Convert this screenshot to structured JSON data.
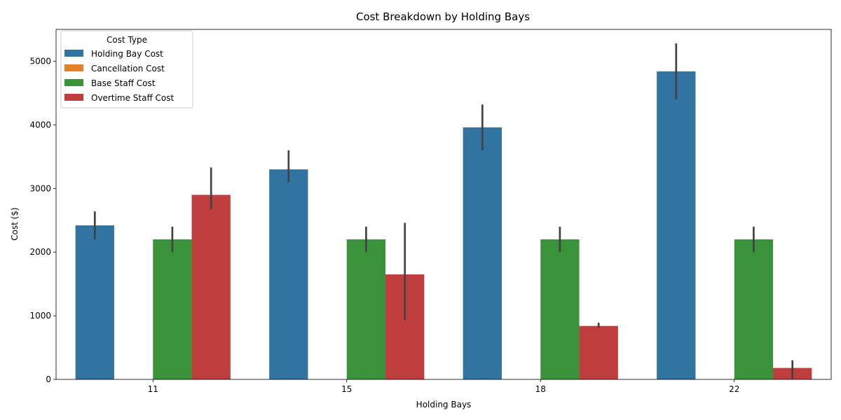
{
  "chart_data": {
    "type": "bar",
    "title": "Cost Breakdown by Holding Bays",
    "xlabel": "Holding Bays",
    "ylabel": "Cost ($)",
    "categories": [
      "11",
      "15",
      "18",
      "22"
    ],
    "ylim": [
      0,
      5500
    ],
    "yticks": [
      0,
      1000,
      2000,
      3000,
      4000,
      5000
    ],
    "legend": {
      "title": "Cost Type",
      "placement": "top-left"
    },
    "grid": false,
    "series": [
      {
        "name": "Holding Bay Cost",
        "color": "#3274a1",
        "values": [
          2420,
          3300,
          3960,
          4840
        ],
        "error_low": [
          2200,
          3100,
          3600,
          4400
        ],
        "error_high": [
          2640,
          3600,
          4320,
          5280
        ]
      },
      {
        "name": "Cancellation Cost",
        "color": "#e1812c",
        "values": [
          0,
          0,
          0,
          0
        ],
        "error_low": [
          0,
          0,
          0,
          0
        ],
        "error_high": [
          0,
          0,
          0,
          0
        ]
      },
      {
        "name": "Base Staff Cost",
        "color": "#3a923a",
        "values": [
          2200,
          2200,
          2200,
          2200
        ],
        "error_low": [
          2000,
          2000,
          2000,
          2000
        ],
        "error_high": [
          2400,
          2400,
          2400,
          2400
        ]
      },
      {
        "name": "Overtime Staff Cost",
        "color": "#c03d3e",
        "values": [
          2900,
          1650,
          840,
          180
        ],
        "error_low": [
          2670,
          930,
          810,
          0
        ],
        "error_high": [
          3330,
          2460,
          890,
          300
        ]
      }
    ]
  }
}
